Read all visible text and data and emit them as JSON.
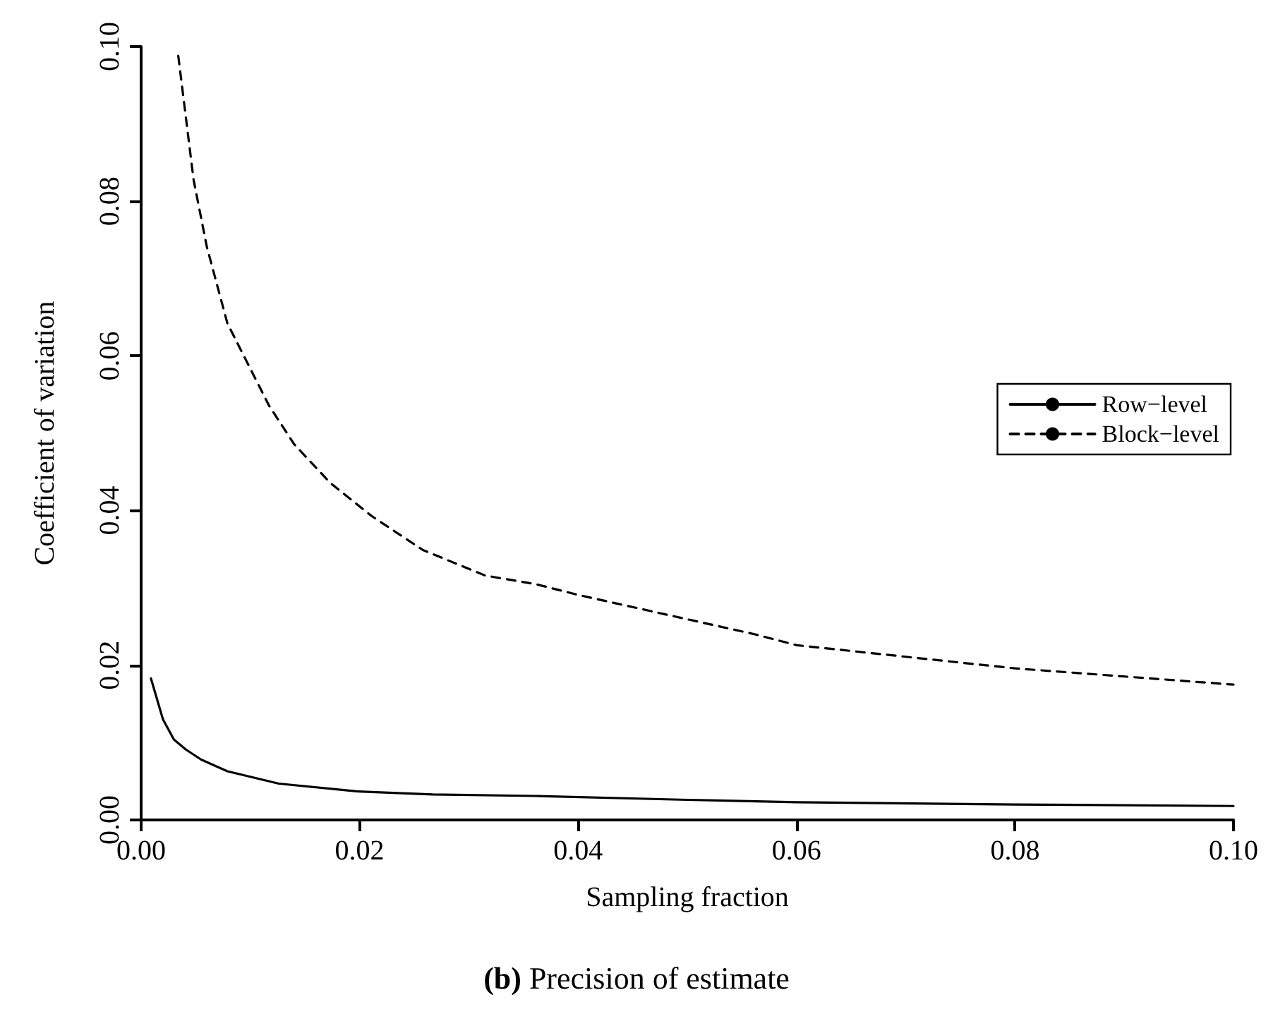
{
  "chart_data": {
    "type": "line",
    "title": "(b) Precision of estimate",
    "xlabel": "Sampling fraction",
    "ylabel": "Coefficient of variation",
    "xlim": [
      0,
      0.1
    ],
    "xticks": [
      {
        "value": 0,
        "label": "0.00"
      },
      0.02,
      0.04,
      0.06,
      0.08,
      {
        "value": 0.1,
        "label": "0.10"
      }
    ],
    "ylim": [
      0,
      0.1
    ],
    "yticks": [
      {
        "value": 0,
        "label": "0.00"
      },
      0.02,
      0.04,
      0.06,
      0.08,
      {
        "value": 0.1,
        "label": "0.10"
      }
    ],
    "legend": "right",
    "grid": false,
    "marker": "none",
    "series": [
      {
        "name": "Row−level",
        "color": "#000000",
        "line_style": "solid",
        "x": [
          0.0009,
          0.002,
          0.003,
          0.0041,
          0.0055,
          0.0079,
          0.0126,
          0.0197,
          0.0267,
          0.0361,
          0.05,
          0.06,
          0.08,
          0.1
        ],
        "values": [
          0.0183,
          0.013,
          0.0104,
          0.0091,
          0.0078,
          0.0063,
          0.0047,
          0.0037,
          0.0033,
          0.0031,
          0.0026,
          0.0023,
          0.002,
          0.0018
        ]
      },
      {
        "name": "Block−level",
        "color": "#000000",
        "line_style": "dashed",
        "x": [
          0.0034,
          0.0048,
          0.006,
          0.0079,
          0.0098,
          0.0117,
          0.014,
          0.0173,
          0.0211,
          0.0258,
          0.0315,
          0.0361,
          0.04,
          0.0562,
          0.06,
          0.08,
          0.1
        ],
        "values": [
          0.0988,
          0.0828,
          0.0742,
          0.0642,
          0.0589,
          0.0536,
          0.0486,
          0.0436,
          0.0393,
          0.0349,
          0.0316,
          0.0305,
          0.0291,
          0.024,
          0.0226,
          0.0196,
          0.0175
        ]
      }
    ]
  }
}
